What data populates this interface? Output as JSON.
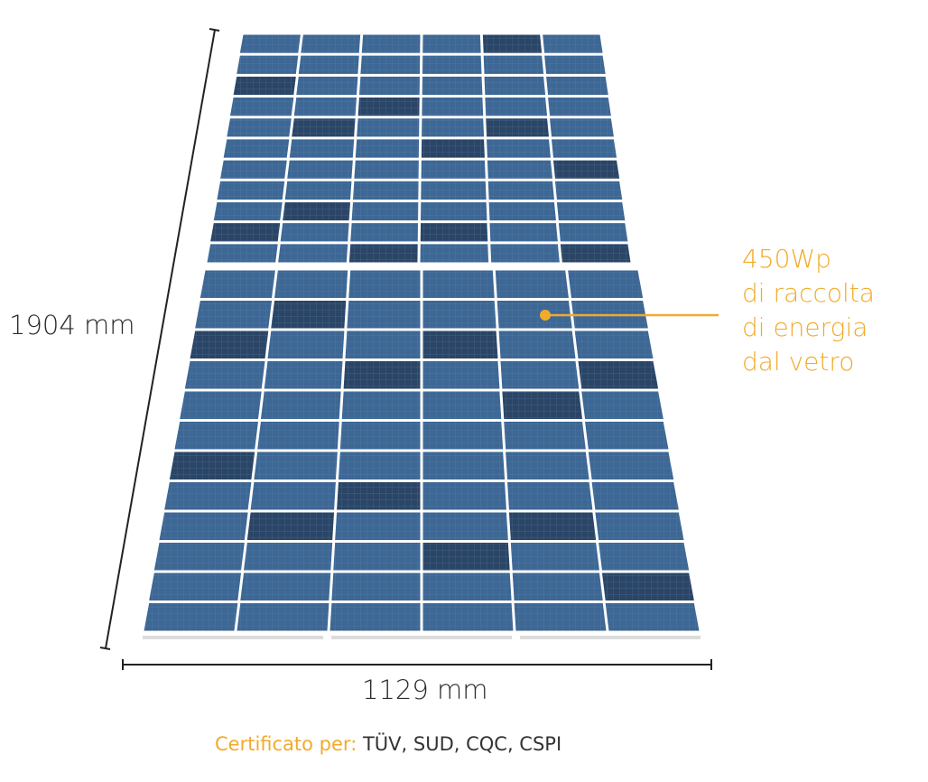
{
  "dimensions": {
    "height_label": "1904 mm",
    "width_label": "1129 mm"
  },
  "callout": {
    "line1": "450Wp",
    "line2": "di raccolta",
    "line3": "di energia",
    "line4": "dal vetro"
  },
  "certification": {
    "label": "Certificato per:",
    "value": "TÜV, SUD, CQC, CSPI"
  },
  "colors": {
    "accent": "#f2aa2a",
    "cell_blue": "#3d6794",
    "cell_dark": "#2a4566",
    "text": "#2b2b2b"
  }
}
